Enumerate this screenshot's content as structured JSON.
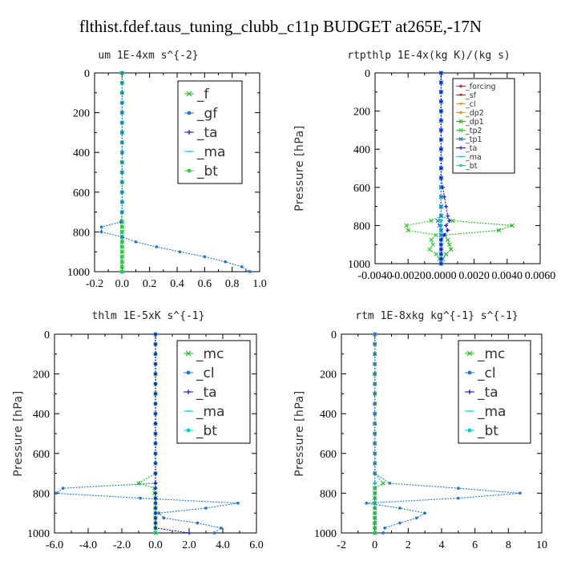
{
  "title": "flthist.fdef.taus_tuning_clubb_c11p  BUDGET at265E,-17N",
  "colors": {
    "green": "#22bb22",
    "blue": "#2277dd",
    "red": "#dd2222",
    "navy": "#1111cc",
    "cyan": "#00d0d0",
    "orange": "#ee9922",
    "bright_green": "#33cc33"
  },
  "chart_data": [
    {
      "type": "line",
      "subtitle": "um  1E-4xm s^{-2}",
      "ylabel": "",
      "xlim": [
        -0.2,
        1.0
      ],
      "ylim": [
        1000,
        0
      ],
      "xticks": [
        -0.2,
        0.0,
        0.2,
        0.4,
        0.6,
        0.8,
        1.0
      ],
      "xtick_labels": [
        "-0.2",
        "0.0",
        "0.2",
        "0.4",
        "0.6",
        "0.8",
        "1.0"
      ],
      "yticks": [
        0,
        200,
        400,
        600,
        800,
        1000
      ],
      "ytick_labels": [
        "0",
        "200",
        "400",
        "600",
        "800",
        "1000"
      ],
      "legend_position": "top-right",
      "legend_size": "large",
      "y": [
        0,
        50,
        100,
        150,
        200,
        250,
        300,
        350,
        400,
        450,
        500,
        550,
        600,
        650,
        700,
        750,
        775,
        800,
        825,
        850,
        875,
        900,
        925,
        950,
        975,
        1000
      ],
      "series": [
        {
          "name": "_f",
          "color": "green",
          "marker": "x",
          "values": [
            0,
            0,
            0,
            0,
            0,
            0,
            0,
            0,
            0,
            0,
            0,
            0,
            0,
            0,
            0,
            0,
            0,
            0,
            0,
            0,
            0,
            0,
            0,
            0,
            0,
            0
          ]
        },
        {
          "name": "_gf",
          "color": "blue",
          "marker": "dot",
          "values": [
            0,
            0,
            0,
            0,
            0,
            0,
            0,
            0,
            0,
            0,
            0,
            0,
            0,
            0,
            0,
            -0.01,
            -0.15,
            -0.15,
            0,
            0.1,
            0.25,
            0.42,
            0.6,
            0.75,
            0.87,
            0.93
          ]
        },
        {
          "name": "_ta",
          "color": "navy",
          "marker": "plus",
          "values": [
            0,
            0,
            0,
            0,
            0,
            0,
            0,
            0,
            0,
            0,
            0,
            0,
            0,
            0,
            0,
            0,
            0,
            0,
            0,
            0,
            0,
            0,
            0,
            0,
            0,
            0
          ]
        },
        {
          "name": "_ma",
          "color": "cyan",
          "marker": "dash",
          "values": [
            0,
            0,
            0,
            0,
            0,
            0,
            0,
            0,
            0,
            0,
            0,
            0,
            0,
            0,
            0,
            0,
            0,
            0,
            0,
            0,
            0,
            0,
            0,
            0,
            0,
            0
          ]
        },
        {
          "name": "_bt",
          "color": "bright_green",
          "marker": "dot",
          "values": [
            0,
            0,
            0,
            0,
            0,
            0,
            0,
            0,
            0,
            0,
            0,
            0,
            0,
            0,
            0,
            0,
            0,
            0,
            0,
            0,
            0,
            0,
            0,
            0,
            0,
            0
          ]
        }
      ]
    },
    {
      "type": "line",
      "subtitle": "rtpthlp  1E-4x(kg K)/(kg s)",
      "ylabel": "Pressure [hPa]",
      "xlim": [
        -0.004,
        0.006
      ],
      "ylim": [
        1000,
        0
      ],
      "xticks": [
        -0.004,
        -0.002,
        0.0,
        0.002,
        0.004,
        0.006
      ],
      "xtick_labels": [
        "-0.0040",
        "-0.0020",
        "0.0000",
        "0.0020",
        "0.0040",
        "0.0060"
      ],
      "yticks": [
        0,
        200,
        400,
        600,
        800,
        1000
      ],
      "ytick_labels": [
        "0",
        "200",
        "400",
        "600",
        "800",
        "1000"
      ],
      "legend_position": "top-right",
      "legend_size": "small",
      "y": [
        0,
        50,
        100,
        150,
        200,
        250,
        300,
        350,
        400,
        450,
        500,
        550,
        600,
        650,
        700,
        750,
        775,
        800,
        825,
        850,
        875,
        900,
        925,
        950,
        975,
        1000
      ],
      "series": [
        {
          "name": "_forcing",
          "color": "red",
          "marker": "dot",
          "values": [
            0,
            0,
            0,
            0,
            0,
            0,
            0,
            0,
            0,
            0,
            0,
            0,
            0,
            0,
            0,
            0,
            0,
            0,
            0,
            0,
            0,
            0,
            0,
            0,
            0,
            0
          ]
        },
        {
          "name": "_sf",
          "color": "red",
          "marker": "tri",
          "values": [
            0,
            0,
            0,
            0,
            0,
            0,
            0,
            0,
            0,
            0,
            0,
            0,
            0,
            0,
            0,
            0,
            0,
            0,
            0,
            0,
            0,
            0,
            0,
            0,
            0,
            0
          ]
        },
        {
          "name": "_cl",
          "color": "orange",
          "marker": "tri",
          "values": [
            0,
            0,
            0,
            0,
            0,
            0,
            0,
            0,
            0,
            0,
            0,
            0,
            0,
            0,
            0,
            0,
            0,
            0,
            0,
            0,
            0,
            0,
            0,
            0,
            0,
            0
          ]
        },
        {
          "name": "_dp2",
          "color": "orange",
          "marker": "dot",
          "values": [
            0,
            0,
            0,
            0,
            0,
            0,
            0,
            0,
            0,
            0,
            0,
            0,
            0,
            0,
            0,
            0,
            0,
            0,
            0,
            0,
            0,
            0,
            0,
            0,
            0,
            0
          ]
        },
        {
          "name": "_dp1",
          "color": "green",
          "marker": "x",
          "values": [
            0,
            0,
            0,
            0,
            0,
            0,
            0,
            0,
            0,
            0,
            0,
            0,
            0,
            0,
            0,
            0,
            0.0007,
            0.0043,
            0.0035,
            0.0002,
            0.0004,
            0.0005,
            0.0006,
            0.0003,
            0.0001,
            0
          ]
        },
        {
          "name": "_tp2",
          "color": "bright_green",
          "marker": "x",
          "values": [
            0,
            0,
            0,
            0,
            0,
            0,
            0,
            0,
            0,
            0,
            0,
            0,
            0,
            0,
            0,
            0,
            -0.0006,
            -0.0021,
            -0.002,
            -0.0003,
            -0.0006,
            -0.0005,
            -0.0007,
            -0.0003,
            -0.0001,
            0
          ]
        },
        {
          "name": "_tp1",
          "color": "blue",
          "marker": "x",
          "values": [
            0,
            0,
            0,
            0,
            0,
            0,
            0,
            0,
            0,
            0,
            0,
            0,
            0,
            0,
            0,
            0,
            -0.0002,
            -0.0001,
            0,
            0,
            0,
            0,
            0,
            0,
            0,
            0
          ]
        },
        {
          "name": "_ta",
          "color": "navy",
          "marker": "plus",
          "values": [
            0,
            0,
            0,
            0,
            0,
            0,
            0,
            0,
            0,
            0,
            0,
            0,
            0.0001,
            0.0002,
            0.0003,
            0.0004,
            0.0005,
            0.0003,
            0.0004,
            0.0002,
            0,
            0,
            0,
            0,
            0,
            0
          ]
        },
        {
          "name": "_ma",
          "color": "cyan",
          "marker": "dash",
          "values": [
            0,
            0,
            0,
            0,
            0,
            0,
            0,
            0,
            0,
            0,
            0,
            0,
            0,
            0,
            0,
            0,
            0,
            0,
            0,
            0,
            0,
            0,
            0,
            0,
            0,
            0
          ]
        },
        {
          "name": "_bt",
          "color": "cyan",
          "marker": "dot",
          "values": [
            0,
            0,
            0,
            0,
            0,
            0,
            0,
            0,
            0,
            0,
            0,
            0,
            0,
            0,
            0,
            0,
            0,
            0,
            0,
            0,
            0,
            0,
            0,
            0,
            0,
            0
          ]
        }
      ]
    },
    {
      "type": "line",
      "subtitle": "thlm  1E-5xK s^{-1}",
      "ylabel": "Pressure [hPa]",
      "xlim": [
        -6,
        6
      ],
      "ylim": [
        1000,
        0
      ],
      "xticks": [
        -6,
        -4,
        -2,
        0,
        2,
        4,
        6
      ],
      "xtick_labels": [
        "-6.0",
        "-4.0",
        "-2.0",
        "0.0",
        "2.0",
        "4.0",
        "6.0"
      ],
      "yticks": [
        0,
        200,
        400,
        600,
        800,
        1000
      ],
      "ytick_labels": [
        "0",
        "200",
        "400",
        "600",
        "800",
        "1000"
      ],
      "legend_position": "top-right",
      "legend_size": "large",
      "y": [
        0,
        50,
        100,
        150,
        200,
        250,
        300,
        350,
        400,
        450,
        500,
        550,
        600,
        650,
        700,
        750,
        775,
        800,
        825,
        850,
        875,
        900,
        925,
        950,
        975,
        1000
      ],
      "series": [
        {
          "name": "_mc",
          "color": "green",
          "marker": "x",
          "values": [
            0,
            0,
            0,
            0,
            0,
            0,
            0,
            0,
            0,
            0,
            0,
            0,
            0,
            0,
            0,
            -1.0,
            -0.05,
            -0.05,
            0,
            0,
            0,
            0,
            0,
            0,
            0,
            0
          ]
        },
        {
          "name": "_cl",
          "color": "blue",
          "marker": "dot",
          "values": [
            0,
            0,
            0,
            0,
            0,
            0,
            0,
            0,
            0,
            0,
            0,
            0,
            0,
            0,
            0,
            -0.01,
            -5.5,
            -5.9,
            -0.9,
            4.9,
            3.0,
            0.2,
            0.5,
            2.5,
            3.9,
            3.5
          ]
        },
        {
          "name": "_ta",
          "color": "navy",
          "marker": "plus",
          "values": [
            0,
            0,
            0,
            0,
            0,
            0,
            0,
            0,
            0,
            0,
            0,
            0,
            0,
            0,
            0,
            0,
            0,
            0,
            0,
            0,
            0,
            0,
            0,
            0,
            0,
            2.0
          ]
        },
        {
          "name": "_ma",
          "color": "cyan",
          "marker": "dash",
          "values": [
            0,
            0,
            0,
            0,
            0,
            0,
            0,
            0,
            0,
            0,
            0,
            0,
            0,
            0,
            0,
            0,
            0,
            0,
            0,
            0,
            0,
            0,
            0,
            0,
            0,
            0
          ]
        },
        {
          "name": "_bt",
          "color": "cyan",
          "marker": "dot",
          "values": [
            0,
            0,
            0,
            0,
            0,
            0,
            0,
            0,
            0,
            0,
            0,
            0,
            0,
            0,
            0,
            0,
            0,
            0,
            0,
            0,
            0,
            0,
            0,
            0,
            0,
            0
          ]
        }
      ]
    },
    {
      "type": "line",
      "subtitle": "rtm  1E-8xkg kg^{-1} s^{-1}",
      "ylabel": "Pressure [hPa]",
      "xlim": [
        -2,
        10
      ],
      "ylim": [
        1000,
        0
      ],
      "xticks": [
        -2,
        0,
        2,
        4,
        6,
        8,
        10
      ],
      "xtick_labels": [
        "-2",
        "0",
        "2",
        "4",
        "6",
        "8",
        "10"
      ],
      "yticks": [
        0,
        200,
        400,
        600,
        800,
        1000
      ],
      "ytick_labels": [
        "0",
        "200",
        "400",
        "600",
        "800",
        "1000"
      ],
      "legend_position": "top-right",
      "legend_size": "large",
      "y": [
        0,
        50,
        100,
        150,
        200,
        250,
        300,
        350,
        400,
        450,
        500,
        550,
        600,
        650,
        700,
        750,
        775,
        800,
        825,
        850,
        875,
        900,
        925,
        950,
        975,
        1000
      ],
      "series": [
        {
          "name": "_mc",
          "color": "green",
          "marker": "x",
          "values": [
            0,
            0,
            0,
            0,
            0,
            0,
            0,
            0,
            0,
            0,
            0,
            0,
            0,
            0,
            0,
            0.5,
            0,
            0,
            0,
            0,
            0,
            0,
            0,
            0,
            0,
            0
          ]
        },
        {
          "name": "_cl",
          "color": "blue",
          "marker": "dot",
          "values": [
            0,
            0,
            0,
            0,
            0,
            0,
            0,
            0,
            0,
            0,
            0,
            0,
            0,
            0,
            0,
            0.9,
            5.0,
            8.7,
            5.0,
            -0.5,
            1.5,
            3.0,
            2.5,
            1.5,
            0.6,
            0.5
          ]
        },
        {
          "name": "_ta",
          "color": "navy",
          "marker": "plus",
          "values": [
            0,
            0,
            0,
            0,
            0,
            0,
            0,
            0,
            0,
            0,
            0,
            0,
            0,
            0,
            0,
            0,
            0,
            0,
            0,
            0,
            0,
            0,
            0,
            0,
            0,
            0
          ]
        },
        {
          "name": "_ma",
          "color": "cyan",
          "marker": "dash",
          "values": [
            0,
            0,
            0,
            0,
            0,
            0,
            0,
            0,
            0,
            0,
            0,
            0,
            0,
            0,
            0,
            0,
            0,
            0,
            0,
            0,
            0,
            0,
            0,
            0,
            0,
            0
          ]
        },
        {
          "name": "_bt",
          "color": "cyan",
          "marker": "dot",
          "values": [
            0,
            0,
            0,
            0,
            0,
            0,
            0,
            0,
            0,
            0,
            0,
            0,
            0,
            0,
            0,
            0,
            0,
            0,
            0,
            0,
            0,
            0,
            0,
            0,
            0,
            0
          ]
        }
      ]
    }
  ]
}
